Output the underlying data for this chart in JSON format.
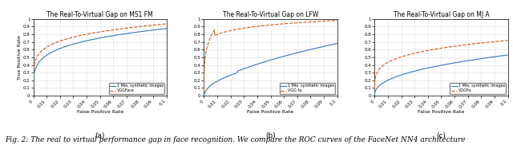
{
  "subplot_titles": [
    "The Real-To-Virtual Gap on MS1 FM",
    "The Real-To-Virtual Gap on LFW",
    "The Real-To-Virtual Gap on MJ A"
  ],
  "xlabel": "False Positive Rate",
  "ylabel": "True Positive Rate",
  "legend_labels_blue": "1 Mio. synthetic images",
  "legend_labels_orange_0": "VGGFace",
  "legend_labels_orange_1": "VGG fa.",
  "legend_labels_orange_2": "VGGFa.",
  "xlim": [
    0,
    0.1
  ],
  "ylim": [
    0,
    1
  ],
  "xticks": [
    0,
    0.01,
    0.02,
    0.03,
    0.04,
    0.05,
    0.06,
    0.07,
    0.08,
    0.09,
    0.1
  ],
  "yticks": [
    0.0,
    0.1,
    0.2,
    0.3,
    0.4,
    0.5,
    0.6,
    0.7,
    0.8,
    0.9,
    1.0
  ],
  "blue_color": "#3477C1",
  "orange_color": "#D4550A",
  "background_color": "#FFFFFF",
  "grid_color": "#DDDDDD",
  "fig_width": 6.4,
  "fig_height": 1.82,
  "subplot_labels": [
    "(a)",
    "(b)",
    "(c)"
  ],
  "caption": "Fig. 2: The real to virtual performance gap in face recognition. We compare the ROC curves of the FaceNet NN4 architecture",
  "caption_fontsize": 6.5,
  "title_fontsize": 5.5,
  "tick_fontsize": 4.0,
  "axis_label_fontsize": 4.5,
  "legend_fontsize": 3.5
}
